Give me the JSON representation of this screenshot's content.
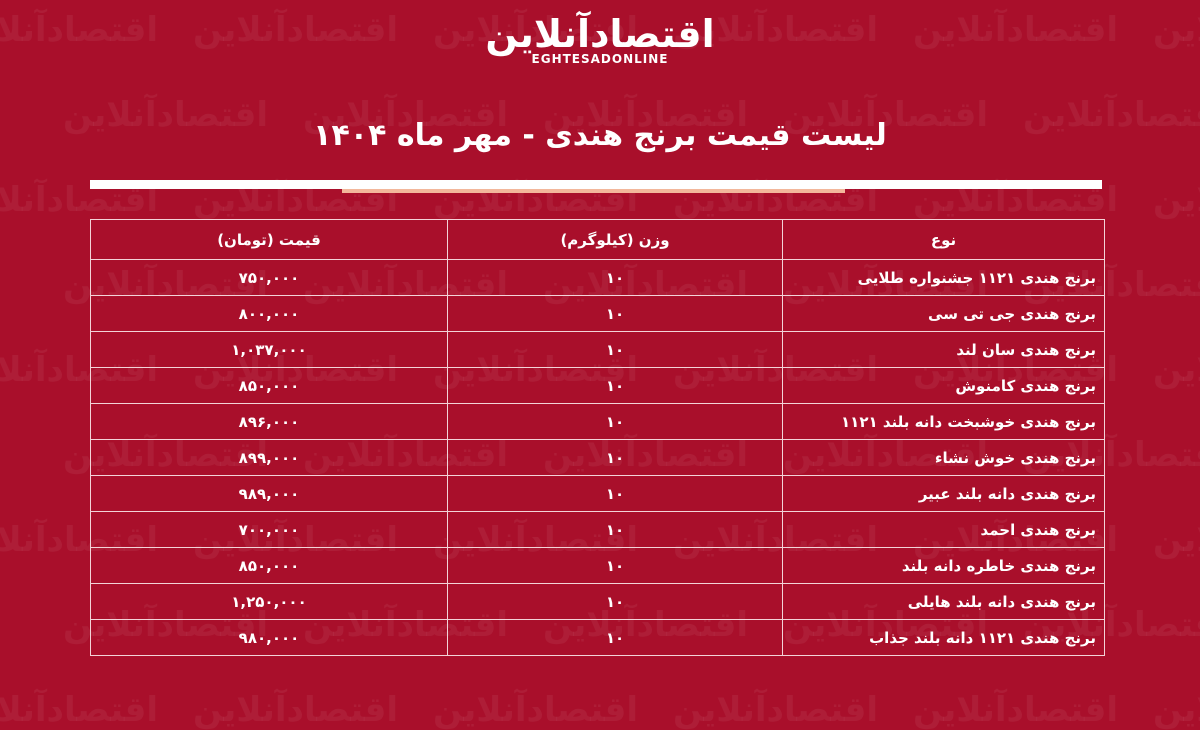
{
  "brand": {
    "logo_fa": "اقتصادآنلاین",
    "logo_en": "EGHTESADONLINE"
  },
  "title": "لیست قیمت برنج هندی - مهر ماه ۱۴۰۴",
  "colors": {
    "background": "#a90f2b",
    "accent_line": "#f3b79b"
  },
  "table": {
    "headers": [
      "نوع",
      "وزن (کیلوگرم)",
      "قیمت (تومان)"
    ],
    "rows": [
      {
        "type": "برنج هندی ۱۱۲۱ جشنواره طلایی",
        "weight": "۱۰",
        "price": "۷۵۰,۰۰۰"
      },
      {
        "type": "برنج هندی جی تی سی",
        "weight": "۱۰",
        "price": "۸۰۰,۰۰۰"
      },
      {
        "type": "برنج هندی سان لند",
        "weight": "۱۰",
        "price": "۱,۰۳۷,۰۰۰"
      },
      {
        "type": "برنج هندی کامنوش",
        "weight": "۱۰",
        "price": "۸۵۰,۰۰۰"
      },
      {
        "type": "برنج هندی خوشبخت دانه بلند ۱۱۲۱",
        "weight": "۱۰",
        "price": "۸۹۶,۰۰۰"
      },
      {
        "type": "برنج هندی خوش نشاء",
        "weight": "۱۰",
        "price": "۸۹۹,۰۰۰"
      },
      {
        "type": "برنج هندی دانه بلند عبیر",
        "weight": "۱۰",
        "price": "۹۸۹,۰۰۰"
      },
      {
        "type": "برنج هندی احمد",
        "weight": "۱۰",
        "price": "۷۰۰,۰۰۰"
      },
      {
        "type": "برنج هندی خاطره دانه بلند",
        "weight": "۱۰",
        "price": "۸۵۰,۰۰۰"
      },
      {
        "type": "برنج هندی دانه بلند هایلی",
        "weight": "۱۰",
        "price": "۱,۲۵۰,۰۰۰"
      },
      {
        "type": "برنج هندی ۱۱۲۱ دانه بلند جذاب",
        "weight": "۱۰",
        "price": "۹۸۰,۰۰۰"
      }
    ]
  }
}
